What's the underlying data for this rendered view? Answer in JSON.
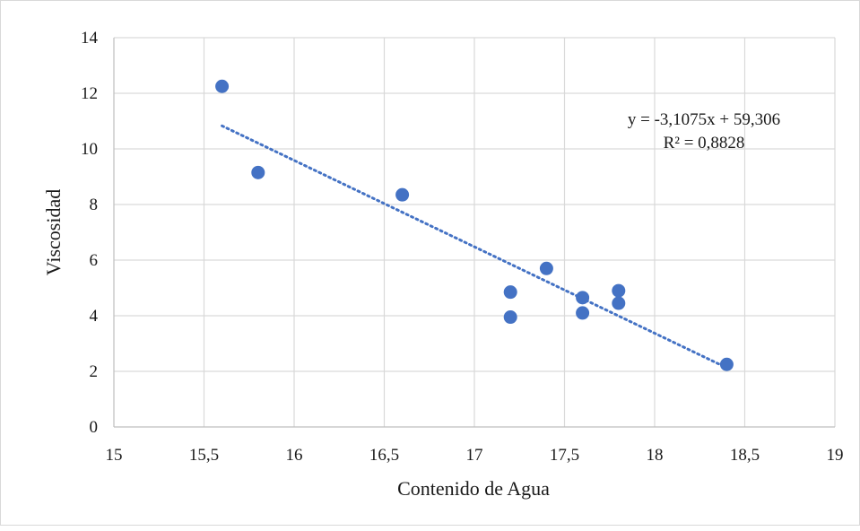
{
  "chart_data": {
    "type": "scatter",
    "title": "",
    "xlabel": "Contenido de Agua",
    "ylabel": "Viscosidad",
    "xlim": [
      15,
      19
    ],
    "ylim": [
      0,
      14
    ],
    "x_ticks": [
      15,
      15.5,
      16,
      16.5,
      17,
      17.5,
      18,
      18.5,
      19
    ],
    "x_tick_labels": [
      "15",
      "15,5",
      "16",
      "16,5",
      "17",
      "17,5",
      "18",
      "18,5",
      "19"
    ],
    "y_ticks": [
      0,
      2,
      4,
      6,
      8,
      10,
      12,
      14
    ],
    "y_tick_labels": [
      "0",
      "2",
      "4",
      "6",
      "8",
      "10",
      "12",
      "14"
    ],
    "grid": true,
    "legend": "none",
    "series": [
      {
        "color": "#4472c4",
        "points": [
          {
            "x": 15.6,
            "y": 12.25
          },
          {
            "x": 15.8,
            "y": 9.15
          },
          {
            "x": 16.6,
            "y": 8.35
          },
          {
            "x": 17.2,
            "y": 4.85
          },
          {
            "x": 17.2,
            "y": 3.95
          },
          {
            "x": 17.4,
            "y": 5.7
          },
          {
            "x": 17.6,
            "y": 4.65
          },
          {
            "x": 17.6,
            "y": 4.1
          },
          {
            "x": 17.8,
            "y": 4.9
          },
          {
            "x": 17.8,
            "y": 4.45
          },
          {
            "x": 18.4,
            "y": 2.25
          }
        ]
      }
    ],
    "trendline": {
      "type": "linear",
      "slope": -3.1075,
      "intercept": 59.306,
      "x_range": [
        15.6,
        18.4
      ],
      "color": "#4472c4",
      "style": "dotted",
      "equation_label": "y = -3,1075x + 59,306",
      "r2_label": "R² = 0,8828",
      "label_position": "top-right"
    }
  }
}
